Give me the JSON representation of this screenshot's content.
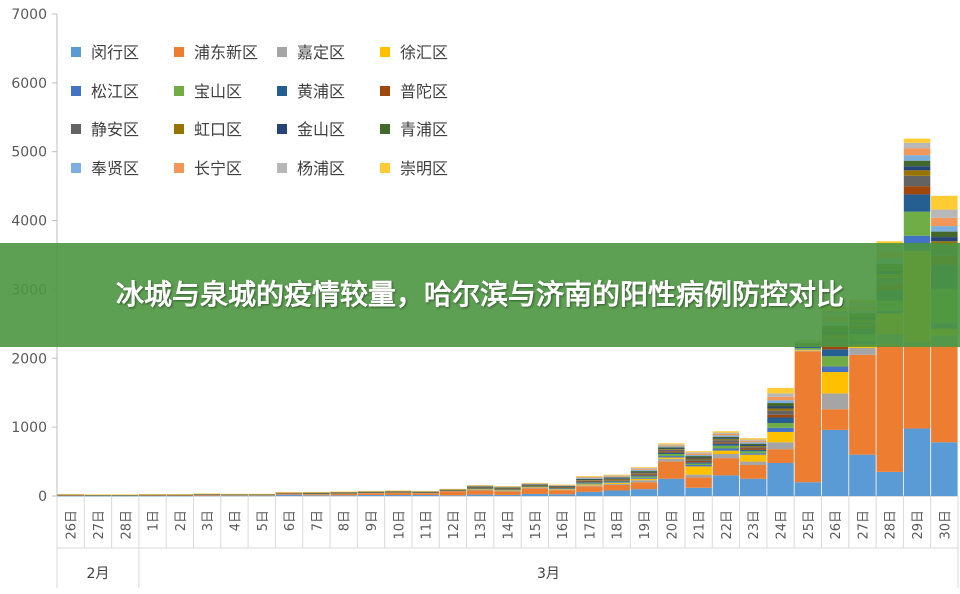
{
  "banner": {
    "headline": "冰城与泉城的疫情较量，哈尔滨与济南的阳性病例防控对比"
  },
  "chart_data": {
    "type": "bar",
    "stacked": true,
    "ylim": [
      0,
      7000
    ],
    "yticks": [
      0,
      1000,
      2000,
      3000,
      4000,
      5000,
      6000,
      7000
    ],
    "grid": false,
    "legend_position": "top-left",
    "categories": [
      "26日",
      "27日",
      "28日",
      "1日",
      "2日",
      "3日",
      "4日",
      "5日",
      "6日",
      "7日",
      "8日",
      "9日",
      "10日",
      "11日",
      "12日",
      "13日",
      "14日",
      "15日",
      "16日",
      "17日",
      "18日",
      "19日",
      "20日",
      "21日",
      "22日",
      "23日",
      "24日",
      "25日",
      "26日",
      "27日",
      "28日",
      "29日",
      "30日"
    ],
    "groups": [
      {
        "label": "2月",
        "start": 0,
        "end": 2
      },
      {
        "label": "3月",
        "start": 3,
        "end": 32
      }
    ],
    "series": [
      {
        "name": "闵行区",
        "color": "#5b9bd5",
        "values": [
          2,
          2,
          2,
          2,
          2,
          5,
          5,
          5,
          20,
          10,
          10,
          15,
          15,
          15,
          10,
          20,
          15,
          30,
          25,
          60,
          80,
          100,
          250,
          120,
          300,
          250,
          480,
          200,
          960,
          600,
          350,
          980,
          780
        ]
      },
      {
        "name": "浦东新区",
        "color": "#ed7d31",
        "values": [
          10,
          5,
          5,
          10,
          10,
          15,
          10,
          10,
          20,
          15,
          20,
          25,
          30,
          25,
          60,
          60,
          50,
          80,
          60,
          80,
          80,
          100,
          250,
          150,
          250,
          200,
          200,
          1900,
          300,
          1450,
          1850,
          1200,
          1400
        ]
      },
      {
        "name": "嘉定区",
        "color": "#a5a5a5",
        "values": [
          2,
          2,
          2,
          2,
          2,
          2,
          2,
          2,
          2,
          5,
          5,
          5,
          5,
          5,
          5,
          10,
          10,
          10,
          10,
          15,
          15,
          30,
          40,
          40,
          60,
          50,
          100,
          10,
          230,
          100,
          150,
          60,
          150
        ]
      },
      {
        "name": "徐汇区",
        "color": "#ffc000",
        "values": [
          2,
          2,
          2,
          2,
          2,
          2,
          2,
          2,
          2,
          5,
          5,
          5,
          5,
          5,
          5,
          10,
          10,
          10,
          10,
          15,
          15,
          20,
          20,
          120,
          50,
          100,
          150,
          15,
          310,
          50,
          300,
          1320,
          100
        ]
      },
      {
        "name": "松江区",
        "color": "#4472c4",
        "values": [
          1,
          1,
          1,
          1,
          1,
          1,
          1,
          1,
          1,
          2,
          2,
          2,
          2,
          2,
          2,
          5,
          5,
          5,
          5,
          10,
          10,
          15,
          20,
          20,
          30,
          20,
          60,
          5,
          80,
          50,
          40,
          220,
          80
        ]
      },
      {
        "name": "宝山区",
        "color": "#70ad47",
        "values": [
          1,
          1,
          1,
          1,
          1,
          1,
          1,
          1,
          1,
          2,
          2,
          2,
          2,
          2,
          2,
          5,
          5,
          5,
          5,
          10,
          10,
          20,
          30,
          20,
          40,
          30,
          70,
          20,
          150,
          100,
          150,
          350,
          500
        ]
      },
      {
        "name": "黄浦区",
        "color": "#255e91",
        "values": [
          1,
          1,
          1,
          1,
          1,
          1,
          1,
          1,
          1,
          2,
          2,
          2,
          2,
          2,
          2,
          5,
          5,
          5,
          5,
          10,
          10,
          15,
          20,
          20,
          30,
          20,
          80,
          20,
          100,
          80,
          150,
          250,
          350
        ]
      },
      {
        "name": "普陀区",
        "color": "#9e480e",
        "values": [
          1,
          1,
          1,
          1,
          1,
          1,
          1,
          1,
          1,
          2,
          2,
          2,
          2,
          2,
          2,
          5,
          5,
          5,
          5,
          10,
          10,
          15,
          20,
          20,
          20,
          20,
          40,
          10,
          60,
          40,
          80,
          120,
          130
        ]
      },
      {
        "name": "静安区",
        "color": "#636363",
        "values": [
          1,
          1,
          1,
          1,
          1,
          1,
          1,
          1,
          1,
          2,
          2,
          2,
          2,
          2,
          2,
          5,
          5,
          5,
          5,
          10,
          10,
          15,
          20,
          20,
          30,
          20,
          60,
          10,
          100,
          60,
          100,
          150,
          150
        ]
      },
      {
        "name": "虹口区",
        "color": "#997300",
        "values": [
          1,
          1,
          1,
          1,
          1,
          1,
          1,
          1,
          1,
          2,
          2,
          2,
          2,
          2,
          2,
          5,
          5,
          5,
          5,
          10,
          10,
          10,
          10,
          15,
          15,
          15,
          30,
          10,
          50,
          30,
          50,
          80,
          60
        ]
      },
      {
        "name": "金山区",
        "color": "#264478",
        "values": [
          1,
          1,
          1,
          1,
          1,
          1,
          1,
          1,
          1,
          2,
          2,
          2,
          2,
          2,
          2,
          5,
          5,
          5,
          5,
          10,
          10,
          10,
          10,
          15,
          15,
          15,
          30,
          10,
          50,
          30,
          50,
          60,
          60
        ]
      },
      {
        "name": "青浦区",
        "color": "#43682b",
        "values": [
          1,
          1,
          1,
          1,
          1,
          1,
          1,
          1,
          1,
          2,
          2,
          2,
          2,
          2,
          2,
          5,
          5,
          5,
          5,
          10,
          10,
          15,
          15,
          20,
          20,
          20,
          50,
          10,
          80,
          60,
          100,
          80,
          80
        ]
      },
      {
        "name": "奉贤区",
        "color": "#7cafdd",
        "values": [
          1,
          1,
          1,
          1,
          1,
          1,
          1,
          1,
          1,
          2,
          2,
          2,
          2,
          2,
          2,
          5,
          5,
          5,
          5,
          10,
          10,
          15,
          15,
          15,
          20,
          20,
          40,
          10,
          60,
          40,
          80,
          80,
          80
        ]
      },
      {
        "name": "长宁区",
        "color": "#f1975a",
        "values": [
          1,
          1,
          1,
          1,
          1,
          1,
          1,
          1,
          1,
          2,
          2,
          2,
          2,
          2,
          2,
          5,
          5,
          5,
          5,
          10,
          10,
          15,
          15,
          20,
          20,
          20,
          50,
          10,
          80,
          60,
          100,
          100,
          120
        ]
      },
      {
        "name": "杨浦区",
        "color": "#b7b7b7",
        "values": [
          1,
          1,
          1,
          1,
          1,
          1,
          1,
          1,
          1,
          2,
          2,
          2,
          2,
          2,
          2,
          5,
          5,
          5,
          5,
          10,
          10,
          15,
          15,
          20,
          20,
          20,
          50,
          10,
          80,
          60,
          100,
          80,
          120
        ]
      },
      {
        "name": "崇明区",
        "color": "#ffcd33",
        "values": [
          1,
          1,
          1,
          1,
          1,
          1,
          1,
          1,
          1,
          2,
          2,
          2,
          2,
          2,
          2,
          5,
          5,
          5,
          5,
          10,
          10,
          10,
          15,
          15,
          20,
          20,
          80,
          10,
          60,
          40,
          50,
          60,
          200
        ]
      }
    ]
  }
}
